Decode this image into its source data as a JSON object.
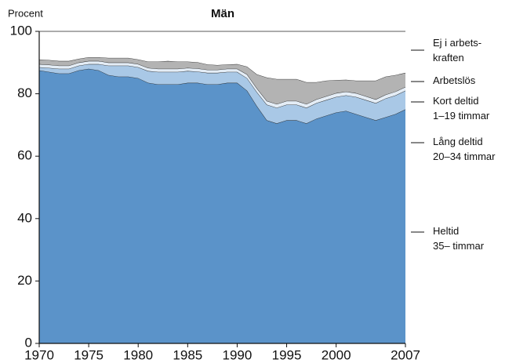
{
  "chart_data": {
    "type": "stacked_area",
    "title": "Män",
    "y_label": "Procent",
    "x": [
      1970,
      1971,
      1972,
      1973,
      1974,
      1975,
      1976,
      1977,
      1978,
      1979,
      1980,
      1981,
      1982,
      1983,
      1984,
      1985,
      1986,
      1987,
      1988,
      1989,
      1990,
      1991,
      1992,
      1993,
      1994,
      1995,
      1996,
      1997,
      1998,
      1999,
      2000,
      2001,
      2002,
      2003,
      2004,
      2005,
      2006,
      2007
    ],
    "xlim": [
      1970,
      2007
    ],
    "xticks": [
      1970,
      1975,
      1980,
      1985,
      1990,
      1995,
      2000,
      2007
    ],
    "ylim": [
      0,
      100
    ],
    "yticks": [
      0,
      20,
      40,
      60,
      80,
      100
    ],
    "series": [
      {
        "name": "Heltid\n35– timmar",
        "color": "#5b93c9",
        "values": [
          87.5,
          87,
          86.5,
          86.5,
          87.5,
          88,
          87.5,
          86,
          85.5,
          85.5,
          85,
          83.5,
          83,
          83,
          83,
          83.5,
          83.5,
          83,
          83,
          83.5,
          83.5,
          81,
          76,
          71.5,
          70.5,
          71.5,
          71.5,
          70.5,
          72,
          73,
          74,
          74.5,
          73.5,
          72.5,
          71.5,
          72.5,
          73.5,
          75
        ]
      },
      {
        "name": "Lång deltid\n20–34 timmar",
        "color": "#a9c8e6",
        "values": [
          1,
          1.3,
          1.5,
          1.5,
          1.5,
          1.5,
          2,
          3,
          3.5,
          3.5,
          3.5,
          3.8,
          4,
          4,
          4,
          3.8,
          3.6,
          3.7,
          3.7,
          3.5,
          3.5,
          4,
          4.5,
          5,
          5,
          5,
          5,
          5,
          5,
          5,
          5,
          5,
          5.5,
          5.5,
          5.5,
          6,
          6,
          6
        ]
      },
      {
        "name": "Kort deltid\n1–19 timmar",
        "color": "#e4edf6",
        "values": [
          1,
          1,
          1,
          1,
          1,
          1,
          1,
          1,
          1,
          1,
          1,
          1,
          1,
          1,
          1,
          1,
          1,
          1,
          1,
          1,
          1,
          1.2,
          1.2,
          1.2,
          1.2,
          1.2,
          1.2,
          1.2,
          1.2,
          1.2,
          1.2,
          1.2,
          1.2,
          1.2,
          1.2,
          1.2,
          1.2,
          1.2
        ]
      },
      {
        "name": "Arbetslös",
        "color": "#b3b3b3",
        "values": [
          1.5,
          1.5,
          1.5,
          1.5,
          1.2,
          1.2,
          1.2,
          1.5,
          1.5,
          1.5,
          1.5,
          2,
          2.3,
          2.5,
          2.3,
          2,
          2,
          1.7,
          1.5,
          1.4,
          1.5,
          2.5,
          4.5,
          7.5,
          8,
          7,
          7,
          7,
          5.5,
          5,
          4.2,
          3.8,
          4,
          5,
          6,
          5.8,
          5.3,
          4.5
        ]
      },
      {
        "name": "Ej i arbets-\nkraften",
        "color": "#ffffff",
        "values": [
          9,
          9.2,
          9.5,
          9.5,
          8.8,
          8.3,
          8.3,
          8.5,
          8.5,
          8.5,
          9,
          9.7,
          9.7,
          9.5,
          9.7,
          9.7,
          9.9,
          10.6,
          10.8,
          10.6,
          10.5,
          11.3,
          13.8,
          14.8,
          15.3,
          15.3,
          15.3,
          16.3,
          16.3,
          15.8,
          15.6,
          15.5,
          15.8,
          15.8,
          15.8,
          14.5,
          14,
          13.3
        ]
      }
    ]
  }
}
